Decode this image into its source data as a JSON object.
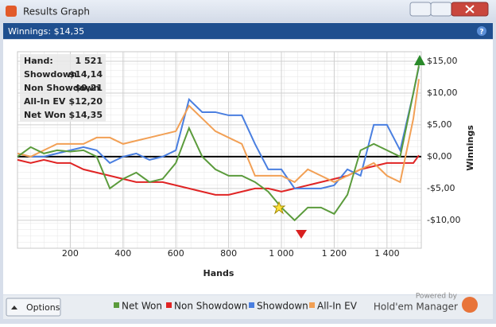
{
  "window": {
    "title": "Results Graph",
    "header": "Winnings: $14,35",
    "help": "?",
    "options": "Options",
    "powered_by": "Powered by",
    "brand": "Hold'em Manager"
  },
  "stats": {
    "rows": [
      [
        "Hand:",
        "1 521"
      ],
      [
        "Showdown",
        "$14,14"
      ],
      [
        "Non Showdown",
        "$0,21"
      ],
      [
        "All-In EV",
        "$12,20"
      ],
      [
        "Net Won",
        "$14,35"
      ]
    ]
  },
  "chart_data": {
    "type": "line",
    "x_label": "Hands",
    "y_label": "Winnings",
    "x": [
      0,
      50,
      100,
      150,
      200,
      250,
      300,
      350,
      400,
      450,
      500,
      550,
      600,
      650,
      700,
      750,
      800,
      850,
      900,
      950,
      1000,
      1050,
      1100,
      1150,
      1200,
      1250,
      1300,
      1350,
      1400,
      1450,
      1500,
      1521
    ],
    "series": [
      {
        "name": "Net Won",
        "color": "#5b9b3c",
        "values": [
          0,
          1.5,
          0.5,
          1,
          0.8,
          1,
          0,
          -5,
          -3.5,
          -2.5,
          -4,
          -3.5,
          -1,
          4.5,
          0,
          -2,
          -3,
          -3,
          -4,
          -5.5,
          -8,
          -10,
          -8,
          -8,
          -9,
          -6,
          1,
          2,
          1,
          0,
          10,
          14.35
        ]
      },
      {
        "name": "Non Showdown",
        "color": "#e02424",
        "values": [
          -0.5,
          -1,
          -0.5,
          -1,
          -1,
          -2,
          -2.5,
          -3,
          -3.5,
          -4,
          -4,
          -4,
          -4.5,
          -5,
          -5.5,
          -6,
          -6,
          -5.5,
          -5,
          -5,
          -5.5,
          -5,
          -4.5,
          -4,
          -3.5,
          -3,
          -2,
          -1.5,
          -1,
          -1,
          -1,
          0.21
        ]
      },
      {
        "name": "Showdown",
        "color": "#4a7fe0",
        "values": [
          0.5,
          0,
          0,
          0.5,
          1,
          1.5,
          1,
          -1,
          0,
          0.5,
          -0.5,
          0,
          1,
          9,
          7,
          7,
          6.5,
          6.5,
          2,
          -2,
          -2,
          -5,
          -5,
          -5,
          -4.5,
          -2,
          -3,
          5,
          5,
          1,
          10,
          14.14
        ]
      },
      {
        "name": "All-In EV",
        "color": "#f2a055",
        "values": [
          0.5,
          0,
          1,
          2,
          2,
          2,
          3,
          3,
          2,
          2.5,
          3,
          3.5,
          4,
          8,
          6,
          4,
          3,
          2,
          -3,
          -3,
          -3,
          -4,
          -2,
          -3,
          -4,
          -3,
          -2,
          -1,
          -3,
          -4,
          6,
          12.2
        ]
      }
    ],
    "xlim": [
      0,
      1530
    ],
    "ylim": [
      -14.4,
      16.5
    ],
    "xticks": [
      200,
      400,
      600,
      800,
      {
        "value": 1000,
        "label": "1 000"
      },
      {
        "value": 1200,
        "label": "1 200"
      },
      {
        "value": 1400,
        "label": "1 400"
      }
    ],
    "yticks": [
      {
        "value": -10,
        "label": "-$10,00"
      },
      {
        "value": -5,
        "label": "-$5,00"
      },
      {
        "value": 0,
        "label": "$0,00"
      },
      {
        "value": 5,
        "label": "$5,00"
      },
      {
        "value": 10,
        "label": "$10,00"
      },
      {
        "value": 15,
        "label": "$15,00"
      }
    ],
    "grid": true
  }
}
